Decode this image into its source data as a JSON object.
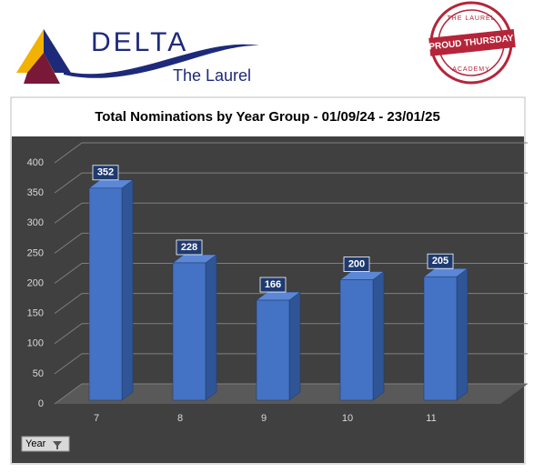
{
  "header": {
    "logo_title": "DELTA",
    "logo_subtitle": "The Laurel",
    "badge_top": "THE LAUREL",
    "badge_main": "PROUD THURSDAY",
    "badge_bottom": "ACADEMY"
  },
  "chart_data": {
    "type": "bar3d",
    "title": "Total Nominations by Year Group - 01/09/24 - 23/01/25",
    "categories": [
      "7",
      "8",
      "9",
      "10",
      "11"
    ],
    "values": [
      352,
      228,
      166,
      200,
      205
    ],
    "color": "#4472c4",
    "ylim": [
      0,
      400
    ],
    "yticks": [
      0,
      50,
      100,
      150,
      200,
      250,
      300,
      350,
      400
    ],
    "grid": true
  },
  "filter_button": {
    "label": "Year"
  }
}
